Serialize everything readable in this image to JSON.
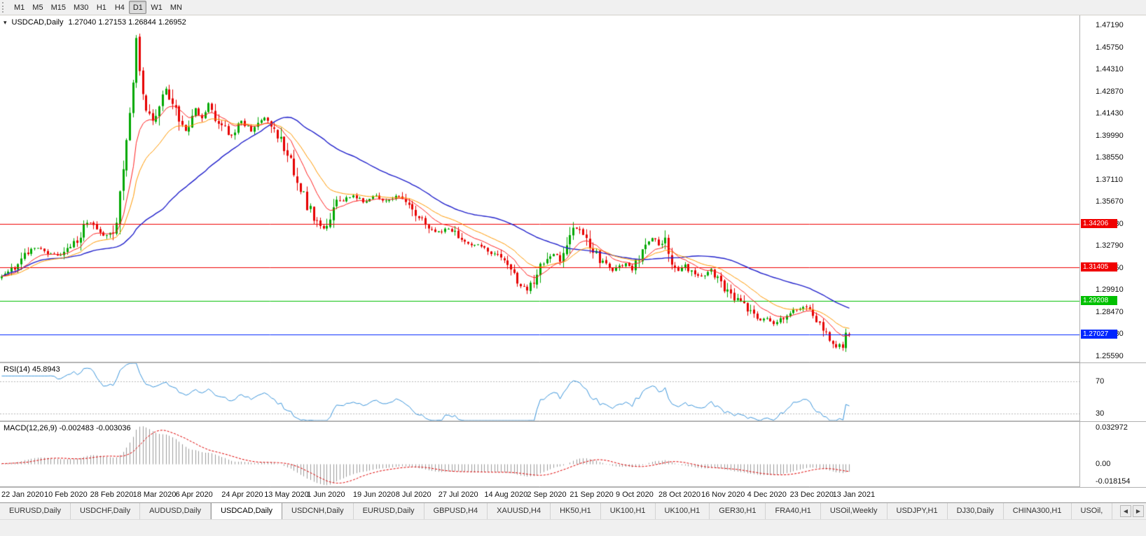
{
  "toolbar": {
    "timeframes": [
      {
        "label": "M1",
        "active": false
      },
      {
        "label": "M5",
        "active": false
      },
      {
        "label": "M15",
        "active": false
      },
      {
        "label": "M30",
        "active": false
      },
      {
        "label": "H1",
        "active": false
      },
      {
        "label": "H4",
        "active": false
      },
      {
        "label": "D1",
        "active": true
      },
      {
        "label": "W1",
        "active": false
      },
      {
        "label": "MN",
        "active": false
      }
    ]
  },
  "icons": {
    "quick_trade": "▾",
    "scroll_left": "◀",
    "scroll_right": "▶"
  },
  "chart": {
    "title": "USDCAD,Daily",
    "ohlc_text": "1.27040 1.27153 1.26844 1.26952",
    "rsi_label": "RSI(14) 45.8943",
    "macd_label": "MACD(12,26,9) -0.002483 -0.003036"
  },
  "chart_data": {
    "type": "candlestick",
    "symbol": "USDCAD",
    "period": "Daily",
    "current_bar": {
      "open": 1.2704,
      "high": 1.27153,
      "low": 1.26844,
      "close": 1.26952
    },
    "price_axis": {
      "min": 1.2518,
      "max": 1.4783,
      "ticks": [
        "1.47190",
        "1.45750",
        "1.44310",
        "1.42870",
        "1.41430",
        "1.39990",
        "1.38550",
        "1.37110",
        "1.35670",
        "1.34230",
        "1.32790",
        "1.31350",
        "1.29910",
        "1.28470",
        "1.27030",
        "1.25590"
      ]
    },
    "h_lines": [
      {
        "price": 1.34206,
        "label": "1.34206",
        "color": "#F00000"
      },
      {
        "price": 1.31405,
        "label": "1.31405",
        "color": "#F00000"
      },
      {
        "price": 1.29208,
        "label": "1.29208",
        "color": "#00C000"
      },
      {
        "price": 1.27027,
        "label": "1.27027",
        "color": "#0026FF"
      }
    ],
    "date_labels": [
      {
        "text": "22 Jan 2020",
        "i": 0
      },
      {
        "text": "10 Feb 2020",
        "i": 13
      },
      {
        "text": "28 Feb 2020",
        "i": 27
      },
      {
        "text": "18 Mar 2020",
        "i": 40
      },
      {
        "text": "6 Apr 2020",
        "i": 53
      },
      {
        "text": "24 Apr 2020",
        "i": 67
      },
      {
        "text": "13 May 2020",
        "i": 80
      },
      {
        "text": "1 Jun 2020",
        "i": 93
      },
      {
        "text": "19 Jun 2020",
        "i": 107
      },
      {
        "text": "8 Jul 2020",
        "i": 120
      },
      {
        "text": "27 Jul 2020",
        "i": 133
      },
      {
        "text": "14 Aug 2020",
        "i": 147
      },
      {
        "text": "2 Sep 2020",
        "i": 160
      },
      {
        "text": "21 Sep 2020",
        "i": 173
      },
      {
        "text": "9 Oct 2020",
        "i": 187
      },
      {
        "text": "28 Oct 2020",
        "i": 200
      },
      {
        "text": "16 Nov 2020",
        "i": 213
      },
      {
        "text": "4 Dec 2020",
        "i": 227
      },
      {
        "text": "23 Dec 2020",
        "i": 240
      },
      {
        "text": "13 Jan 2021",
        "i": 253
      }
    ],
    "candles": {
      "count": 259,
      "spacing": 4.69,
      "seed": 11,
      "up_color": "#00A800",
      "down_color": "#E60000",
      "close_anchors": [
        [
          0,
          1.308
        ],
        [
          4,
          1.314
        ],
        [
          9,
          1.327
        ],
        [
          13,
          1.3245
        ],
        [
          17,
          1.3215
        ],
        [
          22,
          1.329
        ],
        [
          26,
          1.343
        ],
        [
          28,
          1.341
        ],
        [
          31,
          1.3355
        ],
        [
          34,
          1.333
        ],
        [
          36,
          1.361
        ],
        [
          38,
          1.393
        ],
        [
          40,
          1.438
        ],
        [
          41,
          1.462
        ],
        [
          42,
          1.443
        ],
        [
          44,
          1.415
        ],
        [
          46,
          1.409
        ],
        [
          48,
          1.422
        ],
        [
          50,
          1.43
        ],
        [
          53,
          1.415
        ],
        [
          56,
          1.403
        ],
        [
          59,
          1.417
        ],
        [
          61,
          1.41
        ],
        [
          63,
          1.421
        ],
        [
          65,
          1.413
        ],
        [
          67,
          1.406
        ],
        [
          70,
          1.399
        ],
        [
          73,
          1.409
        ],
        [
          76,
          1.403
        ],
        [
          80,
          1.411
        ],
        [
          83,
          1.405
        ],
        [
          86,
          1.391
        ],
        [
          89,
          1.377
        ],
        [
          91,
          1.367
        ],
        [
          93,
          1.355
        ],
        [
          96,
          1.343
        ],
        [
          98,
          1.339
        ],
        [
          100,
          1.344
        ],
        [
          102,
          1.36
        ],
        [
          104,
          1.357
        ],
        [
          107,
          1.3615
        ],
        [
          110,
          1.356
        ],
        [
          113,
          1.361
        ],
        [
          116,
          1.357
        ],
        [
          120,
          1.3605
        ],
        [
          123,
          1.3575
        ],
        [
          126,
          1.3495
        ],
        [
          129,
          1.342
        ],
        [
          133,
          1.337
        ],
        [
          136,
          1.3395
        ],
        [
          139,
          1.3345
        ],
        [
          142,
          1.328
        ],
        [
          145,
          1.329
        ],
        [
          147,
          1.3255
        ],
        [
          150,
          1.3225
        ],
        [
          153,
          1.3175
        ],
        [
          156,
          1.3085
        ],
        [
          158,
          1.302
        ],
        [
          160,
          1.2998
        ],
        [
          162,
          1.306
        ],
        [
          164,
          1.313
        ],
        [
          166,
          1.319
        ],
        [
          168,
          1.3225
        ],
        [
          170,
          1.319
        ],
        [
          172,
          1.329
        ],
        [
          174,
          1.34
        ],
        [
          176,
          1.3375
        ],
        [
          178,
          1.332
        ],
        [
          180,
          1.325
        ],
        [
          182,
          1.319
        ],
        [
          186,
          1.3125
        ],
        [
          188,
          1.314
        ],
        [
          190,
          1.317
        ],
        [
          192,
          1.312
        ],
        [
          194,
          1.321
        ],
        [
          196,
          1.331
        ],
        [
          198,
          1.3335
        ],
        [
          200,
          1.329
        ],
        [
          202,
          1.3315
        ],
        [
          204,
          1.318
        ],
        [
          206,
          1.3125
        ],
        [
          208,
          1.3155
        ],
        [
          210,
          1.31
        ],
        [
          213,
          1.308
        ],
        [
          216,
          1.312
        ],
        [
          218,
          1.3065
        ],
        [
          220,
          1.301
        ],
        [
          222,
          1.2955
        ],
        [
          224,
          1.293
        ],
        [
          227,
          1.287
        ],
        [
          229,
          1.282
        ],
        [
          231,
          1.279
        ],
        [
          233,
          1.2812
        ],
        [
          235,
          1.2772
        ],
        [
          237,
          1.28
        ],
        [
          240,
          1.2832
        ],
        [
          242,
          1.2868
        ],
        [
          244,
          1.2885
        ],
        [
          246,
          1.284
        ],
        [
          248,
          1.279
        ],
        [
          250,
          1.273
        ],
        [
          252,
          1.2675
        ],
        [
          254,
          1.2635
        ],
        [
          255,
          1.2645
        ],
        [
          256,
          1.2612
        ],
        [
          257,
          1.2698
        ],
        [
          258,
          1.2695
        ]
      ]
    },
    "moving_averages": [
      {
        "type": "ema",
        "period": 10,
        "color": "#FF2222",
        "width": 1
      },
      {
        "type": "ema",
        "period": 20,
        "color": "#FF9900",
        "width": 1
      },
      {
        "type": "sma",
        "period": 50,
        "color": "#2222CC",
        "width": 1.4
      }
    ],
    "rsi": {
      "period": 14,
      "value_text": "45.8943",
      "levels": [
        70,
        30
      ],
      "level_labels": [
        "70",
        "30"
      ],
      "scale_min": 20,
      "scale_max": 94,
      "color": "#3C96DC"
    },
    "macd": {
      "fast": 12,
      "slow": 26,
      "signal": 9,
      "main_value": "-0.002483",
      "signal_value": "-0.003036",
      "scale_max": 0.033,
      "scale_min": -0.0182,
      "axis_labels": [
        "0.032972",
        "0.00",
        "-0.018154"
      ],
      "hist_color": "#9A9A9A",
      "signal_color": "#E00000"
    }
  },
  "tabs": {
    "items": [
      {
        "label": "EURUSD,Daily",
        "active": false
      },
      {
        "label": "USDCHF,Daily",
        "active": false
      },
      {
        "label": "AUDUSD,Daily",
        "active": false
      },
      {
        "label": "USDCAD,Daily",
        "active": true
      },
      {
        "label": "USDCNH,Daily",
        "active": false
      },
      {
        "label": "EURUSD,Daily",
        "active": false
      },
      {
        "label": "GBPUSD,H4",
        "active": false
      },
      {
        "label": "XAUUSD,H4",
        "active": false
      },
      {
        "label": "HK50,H1",
        "active": false
      },
      {
        "label": "UK100,H1",
        "active": false
      },
      {
        "label": "UK100,H1",
        "active": false
      },
      {
        "label": "GER30,H1",
        "active": false
      },
      {
        "label": "FRA40,H1",
        "active": false
      },
      {
        "label": "USOil,Weekly",
        "active": false
      },
      {
        "label": "USDJPY,H1",
        "active": false
      },
      {
        "label": "DJ30,Daily",
        "active": false
      },
      {
        "label": "CHINA300,H1",
        "active": false
      },
      {
        "label": "USOil,",
        "active": false
      }
    ]
  }
}
